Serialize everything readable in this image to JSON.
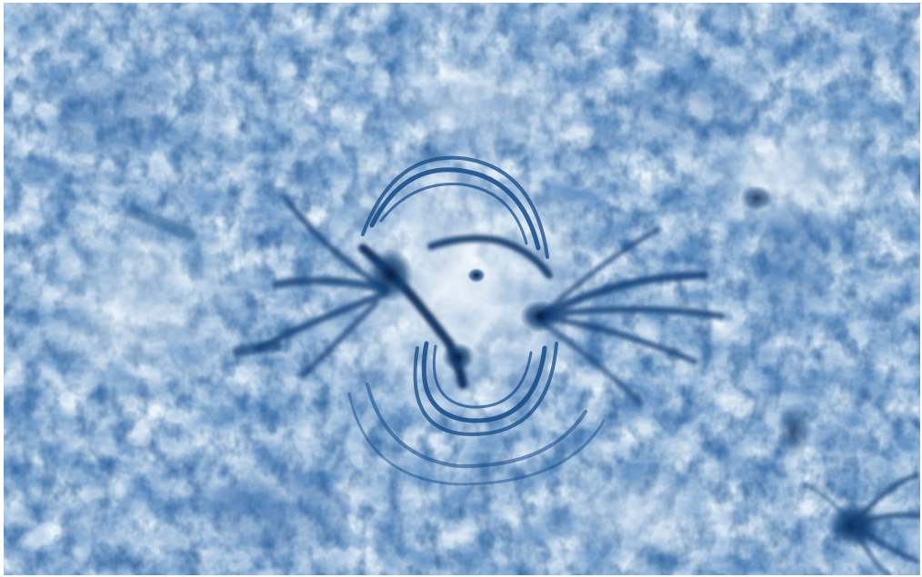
{
  "image": {
    "subject": "solar-chromosphere-active-region",
    "palette": {
      "background": "#5f8fc2",
      "bright": "#e9f3fb",
      "mid": "#8fb6db",
      "dark": "#0b3d75",
      "darkest": "#02183d"
    },
    "visible_text": []
  }
}
